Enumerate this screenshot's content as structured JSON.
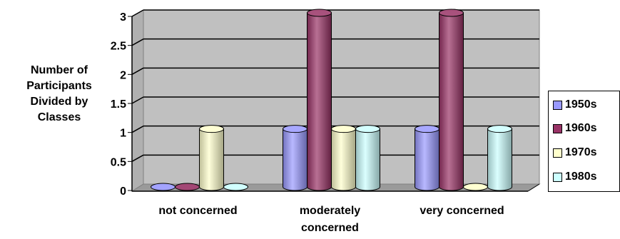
{
  "chart_data": {
    "type": "bar",
    "ylabel_lines": [
      "Number of",
      "Participants",
      "Divided by",
      "Classes"
    ],
    "xlabel": "",
    "categories": [
      [
        "not concerned"
      ],
      [
        "moderately",
        "concerned"
      ],
      [
        "very concerned"
      ]
    ],
    "series": [
      {
        "name": "1950s",
        "values": [
          0,
          1,
          1
        ],
        "color": "#9999ff"
      },
      {
        "name": "1960s",
        "values": [
          0,
          3,
          3
        ],
        "color": "#993366"
      },
      {
        "name": "1970s",
        "values": [
          1,
          1,
          0
        ],
        "color": "#ffffcc"
      },
      {
        "name": "1980s",
        "values": [
          0,
          1,
          1
        ],
        "color": "#ccffff"
      }
    ],
    "ylim": [
      0,
      3
    ],
    "yticks": [
      "0",
      "0.5",
      "1",
      "1.5",
      "2",
      "2.5",
      "3"
    ],
    "grid": true,
    "legend_position": "right",
    "style": "3d-cylinder"
  }
}
